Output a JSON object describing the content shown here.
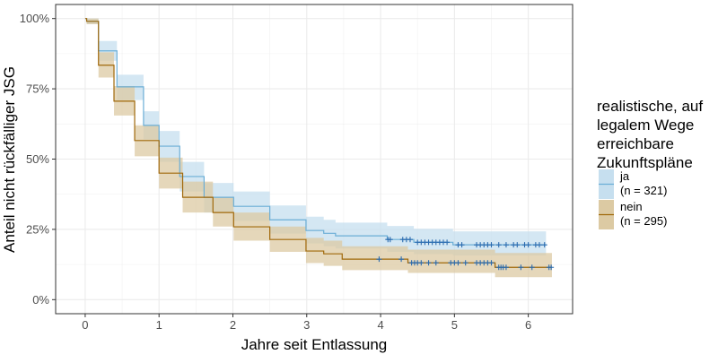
{
  "chart_data": {
    "type": "line",
    "subtype": "kaplan-meier step curves with confidence bands",
    "xlabel": "Jahre seit Entlassung",
    "ylabel": "Anteil nicht rückfälliger JSG",
    "xlim": [
      -0.4,
      6.6
    ],
    "ylim": [
      -0.05,
      1.05
    ],
    "x_ticks": [
      0,
      1,
      2,
      3,
      4,
      5,
      6
    ],
    "x_tick_labels": [
      "0",
      "1",
      "2",
      "3",
      "4",
      "5",
      "6"
    ],
    "y_ticks": [
      0,
      0.25,
      0.5,
      0.75,
      1
    ],
    "y_tick_labels": [
      "0%",
      "25%",
      "50%",
      "75%",
      "100%"
    ],
    "grid": true,
    "legend": {
      "title": [
        "realistische, auf",
        "legalem Wege",
        "erreichbare",
        "Zukunftspläne"
      ],
      "placement": "right"
    },
    "censor_color": "#2b6cb0",
    "series": [
      {
        "name": "ja",
        "n_label": "(n = 321)",
        "line_color": "#6baed6",
        "fill_color": "#c6dfef",
        "x": [
          0,
          0.02,
          0.18,
          0.43,
          0.79,
          1.0,
          1.28,
          1.61,
          2.01,
          2.5,
          2.99,
          3.23,
          3.39,
          4.09,
          4.45,
          4.98,
          6.24
        ],
        "y": [
          1,
          0.99,
          0.885,
          0.757,
          0.62,
          0.546,
          0.438,
          0.364,
          0.332,
          0.284,
          0.246,
          0.236,
          0.227,
          0.214,
          0.204,
          0.195,
          0.195
        ],
        "lower": [
          1,
          0.98,
          0.85,
          0.71,
          0.57,
          0.49,
          0.385,
          0.31,
          0.28,
          0.235,
          0.2,
          0.19,
          0.182,
          0.17,
          0.162,
          0.157,
          0.157
        ],
        "upper": [
          1,
          1,
          0.92,
          0.8,
          0.67,
          0.6,
          0.49,
          0.415,
          0.385,
          0.335,
          0.295,
          0.284,
          0.274,
          0.262,
          0.252,
          0.243,
          0.243
        ],
        "censored": [
          4.1,
          4.13,
          4.3,
          4.35,
          4.4,
          4.5,
          4.55,
          4.6,
          4.65,
          4.7,
          4.75,
          4.8,
          4.85,
          4.9,
          5.05,
          5.1,
          5.3,
          5.35,
          5.4,
          5.45,
          5.5,
          5.6,
          5.7,
          5.8,
          5.85,
          5.95,
          6.0,
          6.1,
          6.15,
          6.22
        ]
      },
      {
        "name": "nein",
        "n_label": "(n = 295)",
        "line_color": "#a0680a",
        "fill_color": "#dccaa3",
        "x": [
          0,
          0.02,
          0.18,
          0.39,
          0.67,
          1.0,
          1.32,
          1.73,
          2.01,
          2.5,
          2.99,
          3.23,
          3.48,
          4.37,
          5.55,
          6.32
        ],
        "y": [
          1,
          0.99,
          0.834,
          0.706,
          0.566,
          0.45,
          0.364,
          0.31,
          0.259,
          0.214,
          0.173,
          0.163,
          0.144,
          0.131,
          0.115,
          0.115
        ],
        "lower": [
          1,
          0.98,
          0.79,
          0.655,
          0.51,
          0.395,
          0.31,
          0.26,
          0.21,
          0.17,
          0.13,
          0.12,
          0.105,
          0.095,
          0.08,
          0.08
        ],
        "upper": [
          1,
          1,
          0.88,
          0.76,
          0.62,
          0.505,
          0.42,
          0.365,
          0.31,
          0.26,
          0.22,
          0.21,
          0.19,
          0.178,
          0.166,
          0.166
        ],
        "censored": [
          3.98,
          4.28,
          4.42,
          4.46,
          4.5,
          4.55,
          4.65,
          4.75,
          4.95,
          5.0,
          5.05,
          5.15,
          5.3,
          5.35,
          5.4,
          5.45,
          5.5,
          5.6,
          5.63,
          5.66,
          5.7,
          5.9,
          6.05,
          6.28,
          6.31
        ]
      }
    ]
  }
}
